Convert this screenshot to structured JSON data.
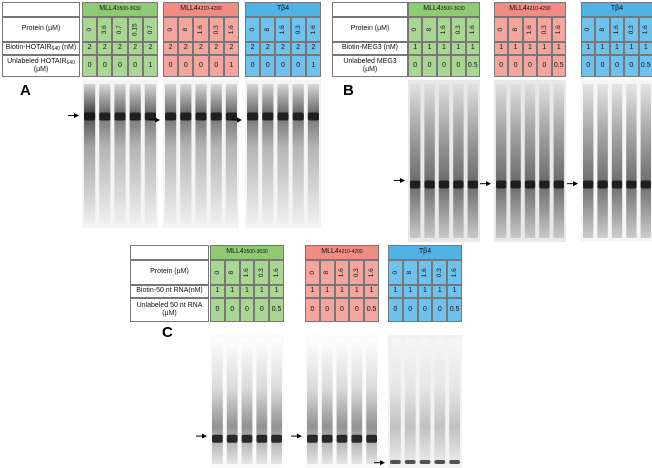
{
  "panels": [
    {
      "letter": "A",
      "row_labels": [
        {
          "text": "Protein (µM)"
        },
        {
          "text": "Biotin-HOTAIR",
          "sub": "640",
          "after": " (nM)"
        },
        {
          "text": "Unlabeled HOTAIR",
          "sub": "640",
          "after": "(µM)"
        }
      ],
      "groups": [
        {
          "name": "MLL4",
          "sub": "3500-3630",
          "protein": [
            "0",
            "3.6",
            "0.7",
            "0.15",
            "0.7"
          ],
          "biotin": [
            "2",
            "2",
            "2",
            "2",
            "2"
          ],
          "unlabeled": [
            "0",
            "0",
            "0",
            "0",
            "1"
          ]
        },
        {
          "name": "MLL4",
          "sub": "4210-4290",
          "protein": [
            "0",
            "8",
            "1.6",
            "0.3",
            "1.6"
          ],
          "biotin": [
            "2",
            "2",
            "2",
            "2",
            "2"
          ],
          "unlabeled": [
            "0",
            "0",
            "0",
            "0",
            "1"
          ]
        },
        {
          "name": "Tβ4",
          "protein": [
            "0",
            "8",
            "1.6",
            "0.3",
            "1.6"
          ],
          "biotin": [
            "2",
            "2",
            "2",
            "2",
            "2"
          ],
          "unlabeled": [
            "0",
            "0",
            "0",
            "0",
            "1"
          ]
        }
      ]
    },
    {
      "letter": "B",
      "row_labels": [
        {
          "text": "Protein (µM)"
        },
        {
          "text": "Biotin-MEG3 (nM)"
        },
        {
          "text": "Unlabeled MEG3",
          "after": "(µM)"
        }
      ],
      "groups": [
        {
          "name": "MLL4",
          "sub": "3500-3630",
          "protein": [
            "0",
            "8",
            "1.6",
            "0.3",
            "1.6"
          ],
          "biotin": [
            "1",
            "1",
            "1",
            "1",
            "1"
          ],
          "unlabeled": [
            "0",
            "0",
            "0",
            "0",
            "0.5"
          ]
        },
        {
          "name": "MLL4",
          "sub": "4210-4290",
          "protein": [
            "0",
            "8",
            "1.6",
            "0.3",
            "1.6"
          ],
          "biotin": [
            "1",
            "1",
            "1",
            "1",
            "1"
          ],
          "unlabeled": [
            "0",
            "0",
            "0",
            "0",
            "0.5"
          ]
        },
        {
          "name": "Tβ4",
          "protein": [
            "0",
            "8",
            "1.6",
            "0.3",
            "1.6"
          ],
          "biotin": [
            "1",
            "1",
            "1",
            "1",
            "1"
          ],
          "unlabeled": [
            "0",
            "0",
            "0",
            "0",
            "0.5"
          ]
        }
      ]
    },
    {
      "letter": "C",
      "row_labels": [
        {
          "text": "Protein (µM)"
        },
        {
          "text": "Biotin-50 nt RNA(nM)"
        },
        {
          "text": "Unlabeled 50 nt RNA",
          "after": "(µM)"
        }
      ],
      "groups": [
        {
          "name": "MLL4",
          "sub": "3500-3630",
          "protein": [
            "0",
            "8",
            "1.6",
            "0.3",
            "1.6"
          ],
          "biotin": [
            "1",
            "1",
            "1",
            "1",
            "1"
          ],
          "unlabeled": [
            "0",
            "0",
            "0",
            "0",
            "0.5"
          ]
        },
        {
          "name": "MLL4",
          "sub": "4210-4290",
          "protein": [
            "0",
            "8",
            "1.6",
            "0.3",
            "1.6"
          ],
          "biotin": [
            "1",
            "1",
            "1",
            "1",
            "1"
          ],
          "unlabeled": [
            "0",
            "0",
            "0",
            "0",
            "0.5"
          ]
        },
        {
          "name": "Tβ4",
          "protein": [
            "0",
            "8",
            "1.6",
            "0.3",
            "1.6"
          ],
          "biotin": [
            "1",
            "1",
            "1",
            "1",
            "1"
          ],
          "unlabeled": [
            "0",
            "0",
            "0",
            "0",
            "0.5"
          ]
        }
      ]
    }
  ]
}
